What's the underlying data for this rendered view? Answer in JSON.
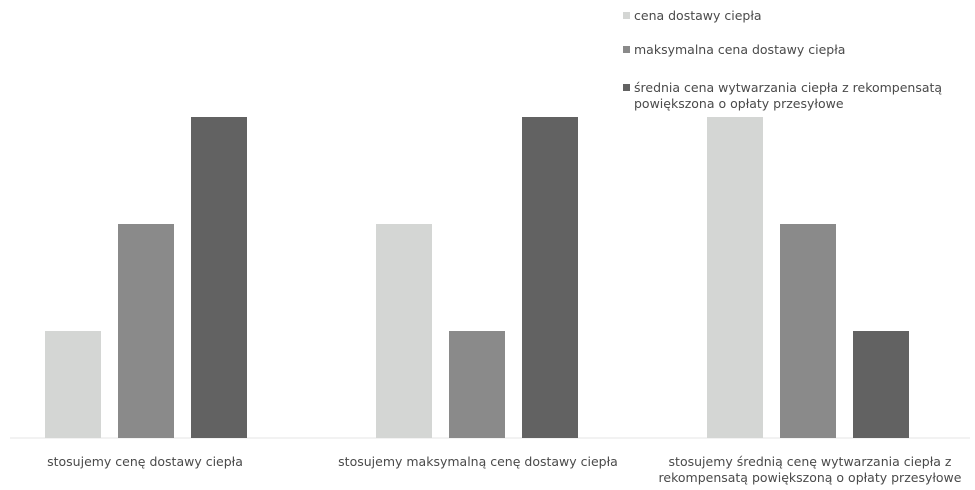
{
  "chart_data": {
    "type": "bar",
    "title": "",
    "xlabel": "",
    "ylabel": "",
    "ylim": [
      0,
      3
    ],
    "grid": false,
    "legend_position": "top-right",
    "categories": [
      "stosujemy cenę dostawy ciepła",
      "stosujemy maksymalną cenę dostawy ciepła",
      "stosujemy średnią cenę wytwarzania ciepła z rekompensatą powiększoną o opłaty przesyłowe"
    ],
    "series": [
      {
        "name": "cena dostawy ciepła",
        "color": "#d4d6d4",
        "values": [
          1,
          2,
          3
        ]
      },
      {
        "name": "maksymalna cena dostawy ciepła",
        "color": "#8a8a8a",
        "values": [
          2,
          1,
          2
        ]
      },
      {
        "name": "średnia cena wytwarzania ciepła z rekompensatą powiększona o opłaty przesyłowe",
        "color": "#626262",
        "values": [
          3,
          3,
          1
        ]
      }
    ]
  }
}
